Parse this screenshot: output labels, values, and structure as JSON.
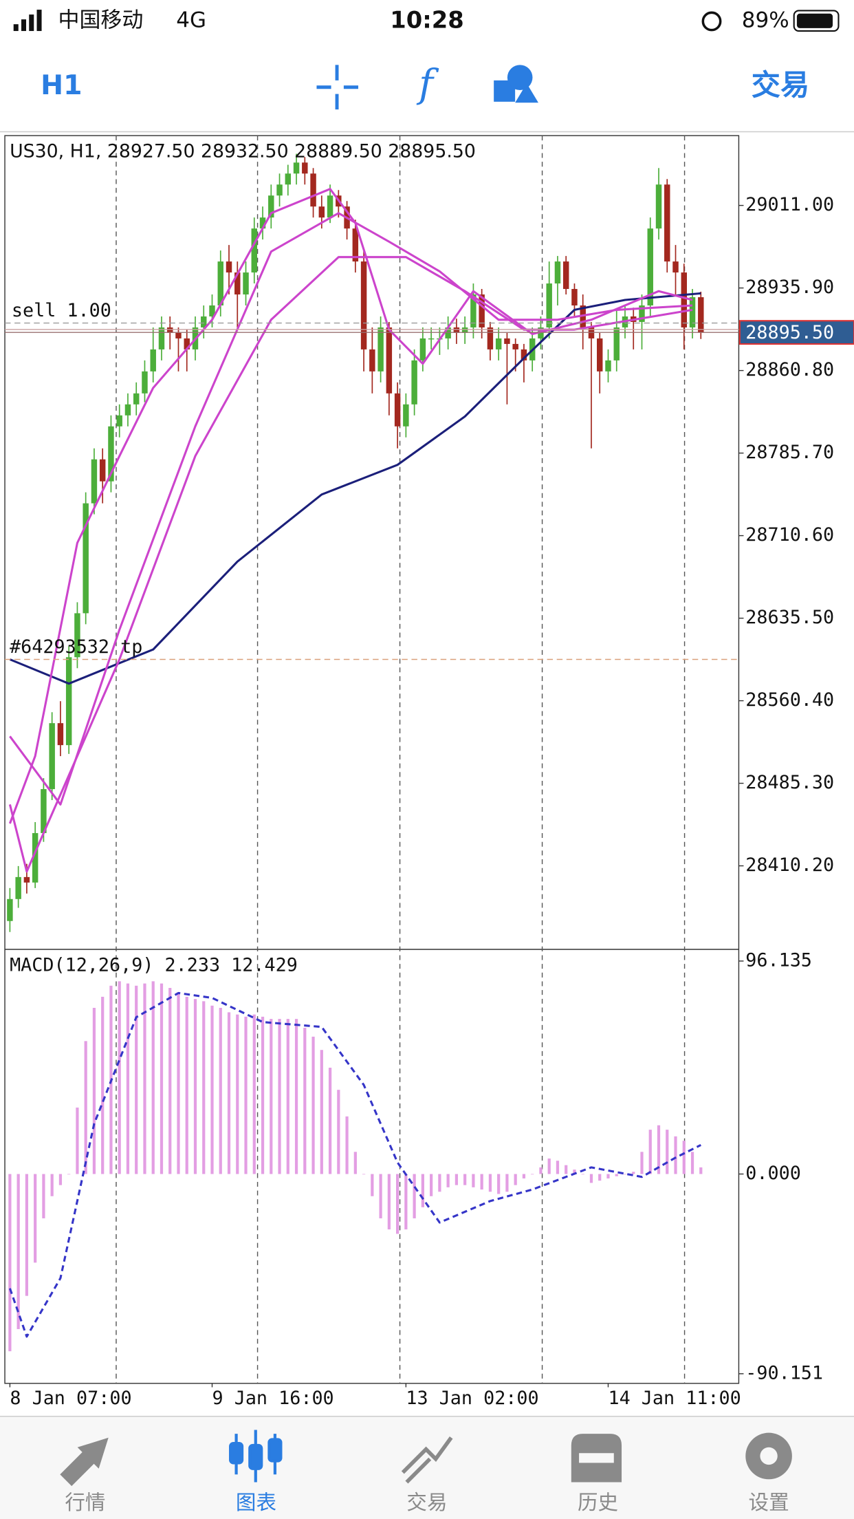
{
  "status_bar": {
    "carrier": "中国移动",
    "network": "4G",
    "time": "10:28",
    "battery": "89%"
  },
  "toolbar": {
    "period": "H1",
    "trade": "交易"
  },
  "chart_data": [
    {
      "type": "candlestick",
      "title": "US30, H1, 28927.50 28932.50 28889.50 28895.50",
      "xlim": [
        -0.6,
        86.5
      ],
      "ylim": [
        28334.2,
        29074.5
      ],
      "yticks": [
        {
          "value": 29011.0,
          "label": "29011.00"
        },
        {
          "value": 28935.9,
          "label": "28935.90"
        },
        {
          "value": 28860.8,
          "label": "28860.80"
        },
        {
          "value": 28785.7,
          "label": "28785.70"
        },
        {
          "value": 28710.6,
          "label": "28710.60"
        },
        {
          "value": 28635.5,
          "label": "28635.50"
        },
        {
          "value": 28560.4,
          "label": "28560.40"
        },
        {
          "value": 28485.3,
          "label": "28485.30"
        },
        {
          "value": 28410.2,
          "label": "28410.20"
        }
      ],
      "up_color": "#4cae3a",
      "down_color": "#a3281f",
      "candles": [
        [
          28360,
          28390,
          28350,
          28380
        ],
        [
          28380,
          28410,
          28372,
          28400
        ],
        [
          28400,
          28412,
          28385,
          28395
        ],
        [
          28395,
          28450,
          28390,
          28440
        ],
        [
          28440,
          28490,
          28432,
          28480
        ],
        [
          28480,
          28550,
          28470,
          28540
        ],
        [
          28540,
          28560,
          28510,
          28520
        ],
        [
          28520,
          28610,
          28512,
          28600
        ],
        [
          28600,
          28650,
          28590,
          28640
        ],
        [
          28640,
          28750,
          28630,
          28740
        ],
        [
          28740,
          28790,
          28730,
          28780
        ],
        [
          28780,
          28790,
          28740,
          28760
        ],
        [
          28760,
          28820,
          28750,
          28810
        ],
        [
          28810,
          28830,
          28800,
          28820
        ],
        [
          28820,
          28840,
          28810,
          28830
        ],
        [
          28830,
          28850,
          28820,
          28840
        ],
        [
          28840,
          28870,
          28832,
          28860
        ],
        [
          28860,
          28900,
          28850,
          28880
        ],
        [
          28880,
          28910,
          28870,
          28900
        ],
        [
          28900,
          28910,
          28880,
          28895
        ],
        [
          28895,
          28900,
          28860,
          28890
        ],
        [
          28890,
          28898,
          28860,
          28880
        ],
        [
          28880,
          28910,
          28870,
          28900
        ],
        [
          28900,
          28920,
          28890,
          28910
        ],
        [
          28910,
          28930,
          28900,
          28920
        ],
        [
          28920,
          28970,
          28910,
          28960
        ],
        [
          28960,
          28975,
          28930,
          28950
        ],
        [
          28950,
          28960,
          28900,
          28930
        ],
        [
          28930,
          28960,
          28920,
          28950
        ],
        [
          28950,
          29000,
          28940,
          28990
        ],
        [
          28990,
          29010,
          28980,
          29000
        ],
        [
          29000,
          29030,
          28990,
          29020
        ],
        [
          29020,
          29040,
          29010,
          29030
        ],
        [
          29030,
          29048,
          29020,
          29040
        ],
        [
          29040,
          29058,
          29030,
          29050
        ],
        [
          29050,
          29055,
          29030,
          29040
        ],
        [
          29040,
          29045,
          29000,
          29010
        ],
        [
          29010,
          29020,
          28990,
          29000
        ],
        [
          29000,
          29030,
          28995,
          29020
        ],
        [
          29020,
          29025,
          29000,
          29010
        ],
        [
          29010,
          29015,
          28980,
          28990
        ],
        [
          28990,
          28998,
          28950,
          28960
        ],
        [
          28960,
          28970,
          28860,
          28880
        ],
        [
          28880,
          28900,
          28840,
          28860
        ],
        [
          28860,
          28910,
          28850,
          28900
        ],
        [
          28900,
          28905,
          28820,
          28840
        ],
        [
          28840,
          28850,
          28790,
          28810
        ],
        [
          28810,
          28840,
          28800,
          28830
        ],
        [
          28830,
          28880,
          28820,
          28870
        ],
        [
          28870,
          28900,
          28860,
          28890
        ],
        [
          28890,
          28900,
          28880,
          28890
        ],
        [
          28890,
          28900,
          28875,
          28890
        ],
        [
          28890,
          28910,
          28880,
          28900
        ],
        [
          28900,
          28908,
          28885,
          28895
        ],
        [
          28895,
          28910,
          28885,
          28900
        ],
        [
          28900,
          28940,
          28890,
          28930
        ],
        [
          28930,
          28935,
          28890,
          28900
        ],
        [
          28900,
          28905,
          28870,
          28880
        ],
        [
          28880,
          28900,
          28870,
          28890
        ],
        [
          28890,
          28895,
          28830,
          28885
        ],
        [
          28885,
          28890,
          28860,
          28880
        ],
        [
          28880,
          28885,
          28850,
          28870
        ],
        [
          28870,
          28900,
          28860,
          28890
        ],
        [
          28890,
          28910,
          28880,
          28900
        ],
        [
          28900,
          28960,
          28890,
          28940
        ],
        [
          28940,
          28965,
          28920,
          28960
        ],
        [
          28960,
          28965,
          28930,
          28935
        ],
        [
          28935,
          28940,
          28910,
          28920
        ],
        [
          28920,
          28930,
          28880,
          28900
        ],
        [
          28900,
          28905,
          28790,
          28890
        ],
        [
          28890,
          28895,
          28840,
          28860
        ],
        [
          28860,
          28880,
          28850,
          28870
        ],
        [
          28870,
          28915,
          28860,
          28900
        ],
        [
          28900,
          28920,
          28890,
          28910
        ],
        [
          28910,
          28918,
          28880,
          28905
        ],
        [
          28905,
          28930,
          28880,
          28920
        ],
        [
          28920,
          29000,
          28910,
          28990
        ],
        [
          28990,
          29045,
          28980,
          29030
        ],
        [
          29030,
          29035,
          28950,
          28960
        ],
        [
          28960,
          28975,
          28930,
          28950
        ],
        [
          28950,
          28958,
          28880,
          28900
        ],
        [
          28900,
          28935,
          28890,
          28927.5
        ],
        [
          28927.5,
          28932.5,
          28889.5,
          28895.5
        ]
      ],
      "lines": [
        {
          "color": "#1b1f7a",
          "x": [
            0,
            7,
            17,
            27,
            37,
            46,
            54,
            61,
            67,
            73,
            82
          ],
          "values": [
            28598,
            28576,
            28607,
            28687,
            28748,
            28775,
            28819,
            28872,
            28916,
            28925,
            28931
          ]
        },
        {
          "color": "#cc44cc",
          "x": [
            0,
            3,
            8,
            13,
            17,
            24,
            31,
            38,
            41,
            45,
            49,
            55,
            62,
            69,
            77,
            81
          ],
          "values": [
            28448.7,
            28510,
            28704,
            28783,
            28845,
            28907,
            29004,
            29026,
            28995,
            28898,
            28867,
            28933,
            28894,
            28907,
            28933,
            28925
          ]
        },
        {
          "color": "#cc44cc",
          "x": [
            0,
            6,
            13,
            22,
            31,
            39,
            45,
            51,
            58,
            65,
            72,
            81
          ],
          "values": [
            28528,
            28466,
            28625,
            28810,
            28969,
            29004,
            28978,
            28951,
            28907,
            28907,
            28916,
            28920
          ]
        },
        {
          "color": "#cc44cc",
          "x": [
            0,
            2,
            6,
            13,
            22,
            31,
            39,
            47,
            54,
            61,
            67,
            81
          ],
          "values": [
            28466,
            28405,
            28475,
            28598,
            28783,
            28907,
            28964,
            28964,
            28933,
            28898,
            28898,
            28916
          ]
        }
      ],
      "annotations": [
        {
          "text": "sell 1.00",
          "level": 28904
        },
        {
          "text": "#64293532 tp",
          "level": 28598
        }
      ],
      "last_price": {
        "value": 28895.5,
        "label": "28895.50"
      }
    },
    {
      "type": "bar",
      "title": "MACD(12,26,9) 2.233 12.429",
      "color": "#e39ee3",
      "xlim": [
        -0.6,
        86.5
      ],
      "ylim": [
        -94.5,
        101.4
      ],
      "yticks": [
        96.135,
        {
          "value": 0,
          "label": "0.000"
        },
        -90.151
      ],
      "xticks": [
        {
          "value": 0,
          "label": "8 Jan 07:00"
        },
        {
          "value": 24,
          "label": "9 Jan 16:00"
        },
        {
          "value": 47,
          "label": "13 Jan 02:00"
        },
        {
          "value": 71,
          "label": "14 Jan 11:00"
        }
      ],
      "values": [
        -80,
        -70,
        -55,
        -40,
        -20,
        -10,
        -5,
        0,
        30,
        60,
        75,
        80,
        85,
        87,
        86,
        85,
        86,
        87,
        86,
        84,
        82,
        80,
        79,
        78,
        76,
        75,
        73,
        72,
        71,
        72,
        71,
        70,
        70,
        70,
        70,
        66,
        62,
        56,
        48,
        38,
        26,
        10,
        0,
        -10,
        -20,
        -25,
        -27,
        -25,
        -20,
        -15,
        -10,
        -8,
        -6,
        -5,
        -5,
        -6,
        -7,
        -8,
        -9,
        -8,
        -5,
        -2,
        0,
        3,
        7,
        6,
        4,
        2,
        0,
        -4,
        -3,
        -2,
        -1,
        0,
        1,
        10,
        20,
        22,
        20,
        17,
        15,
        10,
        3
      ],
      "lines": [
        {
          "color": "#3535c8",
          "dashed": true,
          "x": [
            0,
            2,
            6,
            10,
            15,
            20,
            24,
            30,
            37,
            42,
            46,
            51,
            57,
            62,
            69,
            75,
            79,
            82
          ],
          "values": [
            -51.6,
            -73.4,
            -47,
            22.7,
            70.8,
            81.7,
            79.5,
            68.6,
            66.4,
            40.2,
            5.2,
            -21.9,
            -12.2,
            -7,
            3,
            -1.3,
            7.4,
            13.1
          ]
        }
      ]
    }
  ],
  "tab_bar": {
    "active": 1,
    "tabs": [
      "行情",
      "图表",
      "交易",
      "历史",
      "设置"
    ]
  }
}
